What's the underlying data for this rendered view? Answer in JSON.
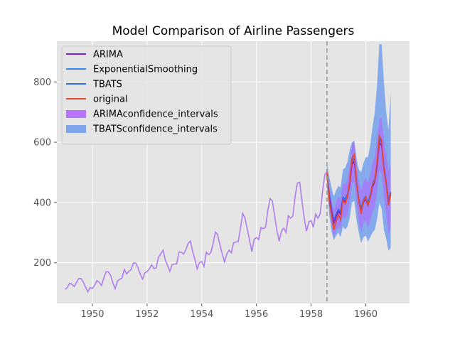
{
  "chart_data": {
    "type": "line",
    "title": "Model Comparison of Airline Passengers",
    "xlabel": "",
    "ylabel": "",
    "xlim": [
      1948.7,
      1961.6
    ],
    "ylim": [
      65,
      935
    ],
    "x_ticks": [
      1950,
      1952,
      1954,
      1956,
      1958,
      1960
    ],
    "y_ticks": [
      200,
      400,
      600,
      800
    ],
    "grid": true,
    "legend_position": "top-left",
    "split_x": 1958.58,
    "colors": {
      "ARIMA": "#7e1ee0",
      "ExponentialSmoothing": "#3a86e8",
      "TBATS": "#2f6fe0",
      "original": "#e84a2a",
      "history": "#b07cf0",
      "ARIMA_ci": "#b266ff",
      "TBATS_ci": "#6495ed",
      "split_line": "#999999"
    },
    "legend": [
      {
        "label": "ARIMA",
        "kind": "line",
        "key": "ARIMA"
      },
      {
        "label": "ExponentialSmoothing",
        "kind": "line",
        "key": "ExponentialSmoothing"
      },
      {
        "label": "TBATS",
        "kind": "line",
        "key": "TBATS"
      },
      {
        "label": "original",
        "kind": "line",
        "key": "original"
      },
      {
        "label": "ARIMAconfidence_intervals",
        "kind": "patch",
        "key": "ARIMA_ci"
      },
      {
        "label": "TBATSconfidence_intervals",
        "kind": "patch",
        "key": "TBATS_ci"
      }
    ],
    "history": {
      "start": 1949.0,
      "values": [
        112,
        118,
        132,
        129,
        121,
        135,
        148,
        148,
        136,
        119,
        104,
        118,
        115,
        126,
        141,
        135,
        125,
        149,
        170,
        170,
        158,
        133,
        114,
        140,
        145,
        150,
        178,
        163,
        172,
        178,
        199,
        199,
        184,
        162,
        146,
        166,
        171,
        180,
        193,
        181,
        183,
        218,
        230,
        242,
        209,
        191,
        172,
        194,
        196,
        196,
        236,
        235,
        229,
        243,
        264,
        272,
        237,
        211,
        180,
        201,
        204,
        188,
        235,
        227,
        234,
        264,
        302,
        293,
        259,
        229,
        203,
        229,
        242,
        233,
        267,
        269,
        270,
        315,
        364,
        347,
        312,
        274,
        237,
        278,
        284,
        277,
        317,
        313,
        318,
        374,
        413,
        405,
        355,
        306,
        271,
        306,
        315,
        301,
        356,
        348,
        355,
        422,
        465,
        467,
        404,
        347,
        305,
        336,
        340,
        318,
        362,
        348,
        363,
        435,
        491,
        505
      ]
    },
    "forecast": {
      "start": 1958.58,
      "original": [
        505,
        404,
        359,
        310,
        337,
        360,
        342,
        406,
        396,
        420,
        472,
        548,
        559,
        463,
        407,
        362,
        405,
        417,
        391,
        419,
        461,
        472,
        535,
        622,
        606,
        508,
        461,
        390,
        432
      ],
      "ARIMA": [
        498,
        421,
        370,
        330,
        352,
        371,
        360,
        410,
        402,
        418,
        462,
        527,
        537,
        460,
        404,
        370,
        400,
        411,
        390,
        416,
        452,
        468,
        520,
        600,
        588,
        512,
        460,
        398,
        425
      ],
      "ExponentialSmoothing": [
        490,
        426,
        378,
        338,
        356,
        375,
        365,
        414,
        408,
        424,
        468,
        535,
        546,
        466,
        410,
        376,
        406,
        418,
        396,
        422,
        458,
        476,
        528,
        610,
        598,
        518,
        466,
        404,
        430
      ],
      "TBATS": [
        494,
        430,
        381,
        342,
        360,
        378,
        368,
        418,
        412,
        428,
        470,
        538,
        548,
        470,
        414,
        380,
        410,
        421,
        400,
        426,
        462,
        480,
        532,
        614,
        602,
        520,
        470,
        408,
        436
      ],
      "ARIMA_ci_lower": [
        470,
        385,
        330,
        285,
        305,
        322,
        308,
        355,
        345,
        360,
        400,
        460,
        470,
        395,
        338,
        300,
        332,
        340,
        315,
        338,
        370,
        385,
        432,
        505,
        495,
        415,
        360,
        290,
        320
      ],
      "ARIMA_ci_upper": [
        520,
        455,
        410,
        375,
        400,
        420,
        412,
        465,
        460,
        476,
        524,
        594,
        604,
        525,
        470,
        440,
        468,
        482,
        465,
        494,
        534,
        551,
        608,
        675,
        681,
        609,
        560,
        506,
        530
      ],
      "TBATS_ci_lower": [
        455,
        360,
        305,
        275,
        290,
        300,
        285,
        320,
        310,
        320,
        350,
        400,
        405,
        340,
        300,
        265,
        285,
        290,
        270,
        285,
        300,
        310,
        345,
        400,
        380,
        310,
        280,
        240,
        250
      ],
      "TBATS_ci_upper": [
        530,
        485,
        450,
        420,
        440,
        455,
        450,
        510,
        515,
        535,
        575,
        600,
        605,
        545,
        510,
        500,
        530,
        550,
        550,
        590,
        650,
        700,
        790,
        925,
        925,
        800,
        700,
        640,
        765
      ]
    }
  }
}
